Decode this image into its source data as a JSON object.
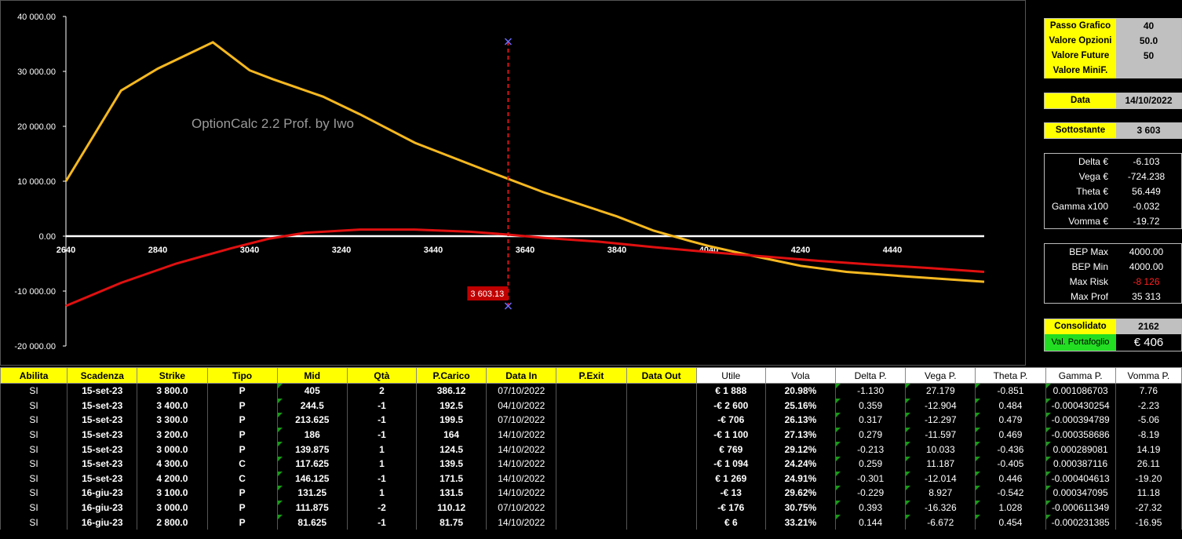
{
  "chart": {
    "watermark": "OptionCalc 2.2 Prof. by Iwo",
    "y_ticks": [
      "40 000.00",
      "30 000.00",
      "20 000.00",
      "10 000.00",
      "0.00",
      "-10 000.00",
      "-20 000.00"
    ],
    "x_ticks": [
      "2640",
      "2840",
      "3040",
      "3240",
      "3440",
      "3640",
      "3840",
      "4040",
      "4240",
      "4440"
    ],
    "cursor_label": "3 603.13",
    "colors": {
      "expiry_line": "#f5b820",
      "today_line": "#e01010",
      "zero_line": "#ffffff",
      "cursor": "#e01010"
    }
  },
  "chart_data": {
    "type": "line",
    "xlim": [
      2640,
      4640
    ],
    "ylim": [
      -20000,
      40000
    ],
    "cursor_x": 3603.13,
    "series": [
      {
        "x": [
          2640,
          2760,
          2840,
          2960,
          3040,
          3090,
          3200,
          3280,
          3400,
          3560,
          3680,
          3840,
          3920,
          4000,
          4040,
          4120,
          4240,
          4340,
          4480,
          4640
        ],
        "y": [
          10000,
          26500,
          30500,
          35300,
          30200,
          28600,
          25400,
          22200,
          17000,
          11800,
          8000,
          3600,
          1000,
          -900,
          -1800,
          -3300,
          -5400,
          -6500,
          -7400,
          -8300
        ]
      },
      {
        "x": [
          2640,
          2760,
          2880,
          3000,
          3080,
          3160,
          3280,
          3400,
          3520,
          3600,
          3680,
          3800,
          3920,
          4040,
          4160,
          4280,
          4400,
          4520,
          4640
        ],
        "y": [
          -12700,
          -8500,
          -5000,
          -2200,
          -500,
          600,
          1200,
          1200,
          800,
          300,
          -300,
          -1000,
          -2000,
          -2900,
          -3700,
          -4500,
          -5200,
          -5800,
          -6500
        ]
      }
    ]
  },
  "params": {
    "passo_grafico": {
      "label": "Passo Grafico",
      "value": "40"
    },
    "valore_opzioni": {
      "label": "Valore Opzioni",
      "value": "50.0"
    },
    "valore_future": {
      "label": "Valore Future",
      "value": "50"
    },
    "valore_minif": {
      "label": "Valore MiniF.",
      "value": ""
    },
    "data": {
      "label": "Data",
      "value": "14/10/2022"
    },
    "sottostante": {
      "label": "Sottostante",
      "value": "3 603"
    }
  },
  "greeks": [
    {
      "label": "Delta €",
      "value": "-6.103"
    },
    {
      "label": "Vega €",
      "value": "-724.238"
    },
    {
      "label": "Theta €",
      "value": "56.449"
    },
    {
      "label": "Gamma x100",
      "value": "-0.032"
    },
    {
      "label": "Vomma €",
      "value": "-19.72"
    }
  ],
  "bep": [
    {
      "label": "BEP Max",
      "value": "4000.00",
      "neg": false
    },
    {
      "label": "BEP Min",
      "value": "4000.00",
      "neg": false
    },
    {
      "label": "Max Risk",
      "value": "-8 126",
      "neg": true
    },
    {
      "label": "Max Prof",
      "value": "35 313",
      "neg": false
    }
  ],
  "consolidato": {
    "label": "Consolidato",
    "value": "2162"
  },
  "portafoglio": {
    "label": "Val. Portafoglio",
    "value": "€ 406"
  },
  "table": {
    "headers": [
      "Abilita",
      "Scadenza",
      "Strike",
      "Tipo",
      "Mid",
      "Qtà",
      "P.Carico",
      "Data In",
      "P.Exit",
      "Data Out",
      "Utile",
      "Vola",
      "Delta P.",
      "Vega P.",
      "Theta P.",
      "Gamma P.",
      "Vomma P."
    ],
    "rows": [
      [
        "SI",
        "15-set-23",
        "3 800.0",
        "P",
        "405",
        "2",
        "386.12",
        "07/10/2022",
        "",
        "",
        "€ 1 888",
        "20.98%",
        "-1.130",
        "27.179",
        "-0.851",
        "0.001086703",
        "7.76"
      ],
      [
        "SI",
        "15-set-23",
        "3 400.0",
        "P",
        "244.5",
        "-1",
        "192.5",
        "04/10/2022",
        "",
        "",
        "-€ 2 600",
        "25.16%",
        "0.359",
        "-12.904",
        "0.484",
        "-0.000430254",
        "-2.23"
      ],
      [
        "SI",
        "15-set-23",
        "3 300.0",
        "P",
        "213.625",
        "-1",
        "199.5",
        "07/10/2022",
        "",
        "",
        "-€ 706",
        "26.13%",
        "0.317",
        "-12.297",
        "0.479",
        "-0.000394789",
        "-5.06"
      ],
      [
        "SI",
        "15-set-23",
        "3 200.0",
        "P",
        "186",
        "-1",
        "164",
        "14/10/2022",
        "",
        "",
        "-€ 1 100",
        "27.13%",
        "0.279",
        "-11.597",
        "0.469",
        "-0.000358686",
        "-8.19"
      ],
      [
        "SI",
        "15-set-23",
        "3 000.0",
        "P",
        "139.875",
        "1",
        "124.5",
        "14/10/2022",
        "",
        "",
        "€ 769",
        "29.12%",
        "-0.213",
        "10.033",
        "-0.436",
        "0.000289081",
        "14.19"
      ],
      [
        "SI",
        "15-set-23",
        "4 300.0",
        "C",
        "117.625",
        "1",
        "139.5",
        "14/10/2022",
        "",
        "",
        "-€ 1 094",
        "24.24%",
        "0.259",
        "11.187",
        "-0.405",
        "0.000387116",
        "26.11"
      ],
      [
        "SI",
        "15-set-23",
        "4 200.0",
        "C",
        "146.125",
        "-1",
        "171.5",
        "14/10/2022",
        "",
        "",
        "€ 1 269",
        "24.91%",
        "-0.301",
        "-12.014",
        "0.446",
        "-0.000404613",
        "-19.20"
      ],
      [
        "SI",
        "16-giu-23",
        "3 100.0",
        "P",
        "131.25",
        "1",
        "131.5",
        "14/10/2022",
        "",
        "",
        "-€ 13",
        "29.62%",
        "-0.229",
        "8.927",
        "-0.542",
        "0.000347095",
        "11.18"
      ],
      [
        "SI",
        "16-giu-23",
        "3 000.0",
        "P",
        "111.875",
        "-2",
        "110.12",
        "07/10/2022",
        "",
        "",
        "-€ 176",
        "30.75%",
        "0.393",
        "-16.326",
        "1.028",
        "-0.000611349",
        "-27.32"
      ],
      [
        "SI",
        "16-giu-23",
        "2 800.0",
        "P",
        "81.625",
        "-1",
        "81.75",
        "14/10/2022",
        "",
        "",
        "€ 6",
        "33.21%",
        "0.144",
        "-6.672",
        "0.454",
        "-0.000231385",
        "-16.95"
      ]
    ]
  }
}
